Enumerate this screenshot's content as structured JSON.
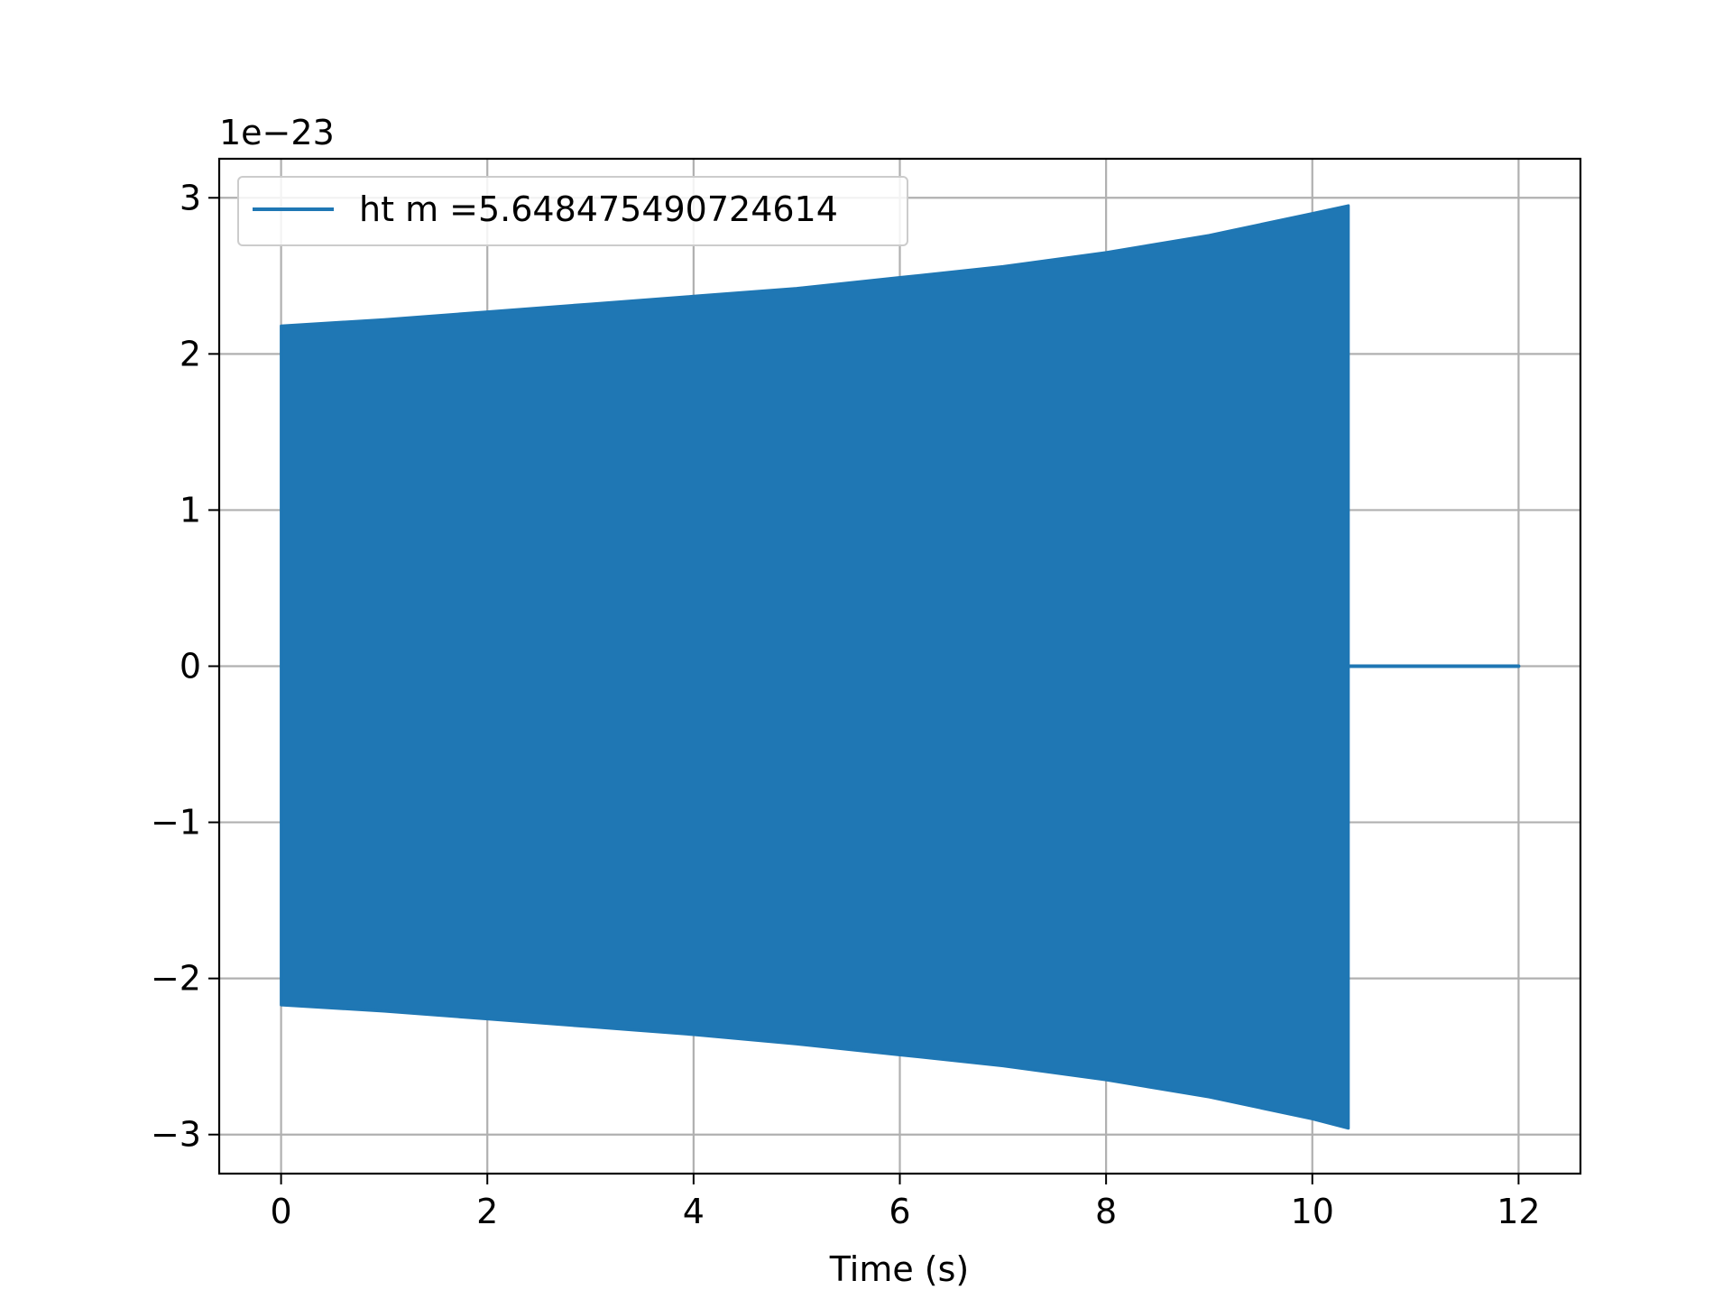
{
  "chart_data": {
    "type": "line",
    "title": "",
    "xlabel": "Time (s)",
    "ylabel": "",
    "y_offset_label": "1e−23",
    "xlim": [
      -0.6,
      12.6
    ],
    "ylim": [
      -3.25,
      3.25
    ],
    "x_ticks": [
      0,
      2,
      4,
      6,
      8,
      10,
      12
    ],
    "x_tick_labels": [
      "0",
      "2",
      "4",
      "6",
      "8",
      "10",
      "12"
    ],
    "y_ticks": [
      -3,
      -2,
      -1,
      0,
      1,
      2,
      3
    ],
    "y_tick_labels": [
      "−3",
      "−2",
      "−1",
      "0",
      "1",
      "2",
      "3"
    ],
    "grid": true,
    "legend_position": "top-left",
    "series": [
      {
        "name": "ht m =5.648475490724614",
        "color": "#1f77b4",
        "description_of_shape": "dense oscillation (chirp) with growing envelope, then flat zero",
        "envelope_x": [
          0.0,
          1.0,
          2.0,
          3.0,
          4.0,
          5.0,
          6.0,
          7.0,
          8.0,
          9.0,
          10.0,
          10.35
        ],
        "envelope_upper": [
          2.18,
          2.22,
          2.27,
          2.32,
          2.37,
          2.42,
          2.49,
          2.56,
          2.65,
          2.76,
          2.9,
          2.95
        ],
        "envelope_lower": [
          -2.17,
          -2.21,
          -2.26,
          -2.31,
          -2.36,
          -2.42,
          -2.49,
          -2.56,
          -2.65,
          -2.76,
          -2.9,
          -2.96
        ],
        "flat_segment_x": [
          10.35,
          12.0
        ],
        "flat_segment_y": [
          0.0,
          0.0
        ]
      }
    ]
  }
}
